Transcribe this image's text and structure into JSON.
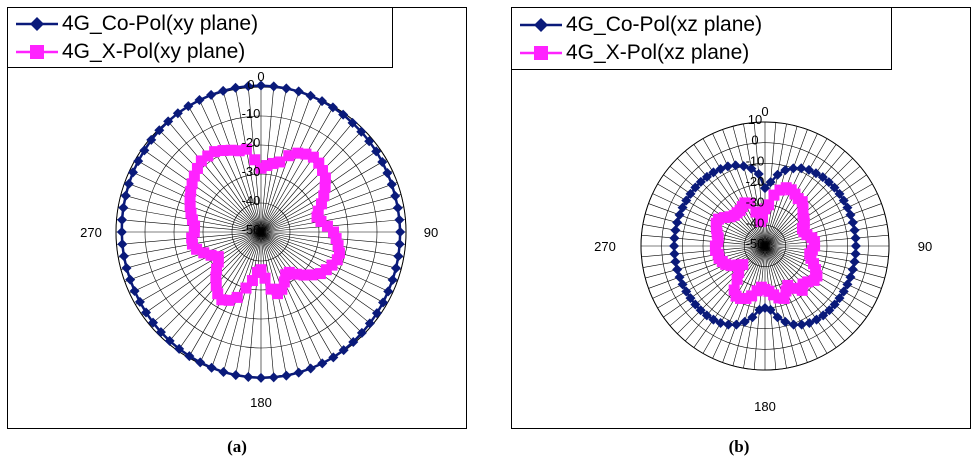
{
  "chart_data": [
    {
      "type": "polar-line",
      "panel_label": "(a)",
      "theta_tick_labels": [
        "0",
        "90",
        "180",
        "270"
      ],
      "r_tick_labels": [
        "0",
        "-10",
        "-20",
        "-30",
        "-40",
        "-50"
      ],
      "r_range": [
        -50,
        0
      ],
      "theta_step_deg": 5,
      "legend_position": "top-left",
      "series": [
        {
          "name": "4G_Co-Pol(xy plane)",
          "color": "#0a1a7a",
          "marker": "diamond",
          "theta_deg": [
            0,
            5,
            10,
            15,
            20,
            25,
            30,
            35,
            40,
            45,
            50,
            55,
            60,
            65,
            70,
            75,
            80,
            85,
            90,
            95,
            100,
            105,
            110,
            115,
            120,
            125,
            130,
            135,
            140,
            145,
            150,
            155,
            160,
            165,
            170,
            175,
            180,
            185,
            190,
            195,
            200,
            205,
            210,
            215,
            220,
            225,
            230,
            235,
            240,
            245,
            250,
            255,
            260,
            265,
            270,
            275,
            280,
            285,
            290,
            295,
            300,
            305,
            310,
            315,
            320,
            325,
            330,
            335,
            340,
            345,
            350,
            355
          ],
          "values": [
            0.5,
            0.4,
            0.3,
            0.2,
            0,
            -0.2,
            -0.4,
            -0.6,
            -0.9,
            -1.1,
            -1.3,
            -1.5,
            -1.7,
            -1.9,
            -2,
            -2.1,
            -2.1,
            -2.1,
            -2,
            -2,
            -1.9,
            -1.8,
            -1.7,
            -1.6,
            -1.4,
            -1.2,
            -1,
            -0.8,
            -0.5,
            -0.3,
            -0.1,
            0,
            0.1,
            0.2,
            0.3,
            0.3,
            0.3,
            0.2,
            0.1,
            0,
            -0.2,
            -0.4,
            -0.6,
            -0.8,
            -1,
            -1.2,
            -1.4,
            -1.6,
            -1.8,
            -1.9,
            -2,
            -2,
            -2,
            -2,
            -2,
            -1.9,
            -1.8,
            -1.7,
            -1.5,
            -1.3,
            -1.1,
            -0.9,
            -0.6,
            -0.4,
            -0.2,
            0,
            0.1,
            0.2,
            0.3,
            0.4,
            0.5,
            0.5
          ]
        },
        {
          "name": "4G_X-Pol(xy plane)",
          "color": "#ff22ff",
          "marker": "square",
          "theta_deg": [
            0,
            5,
            10,
            15,
            20,
            25,
            30,
            35,
            40,
            45,
            50,
            55,
            60,
            65,
            70,
            75,
            80,
            85,
            90,
            95,
            100,
            105,
            110,
            115,
            120,
            125,
            130,
            135,
            140,
            145,
            150,
            155,
            160,
            165,
            170,
            175,
            180,
            185,
            190,
            195,
            200,
            205,
            210,
            215,
            220,
            225,
            230,
            235,
            240,
            245,
            250,
            255,
            260,
            265,
            270,
            275,
            280,
            285,
            290,
            295,
            300,
            305,
            310,
            315,
            320,
            325,
            330,
            335,
            340,
            345,
            350,
            355
          ],
          "values": [
            -28,
            -27,
            -26,
            -25,
            -22,
            -20,
            -19,
            -18.5,
            -19,
            -20,
            -21,
            -23,
            -25,
            -27,
            -29,
            -30,
            -29,
            -27,
            -25,
            -24,
            -23,
            -22,
            -22,
            -23,
            -24,
            -25,
            -27,
            -29,
            -31,
            -33,
            -33,
            -31,
            -29,
            -28,
            -30,
            -34,
            -37,
            -36,
            -33,
            -30,
            -26,
            -24,
            -23,
            -24,
            -26,
            -28,
            -30,
            -32,
            -33,
            -31,
            -29,
            -27,
            -26,
            -26,
            -27,
            -27,
            -26,
            -25,
            -24,
            -23,
            -22,
            -21,
            -20,
            -19,
            -18,
            -18,
            -18,
            -19,
            -20,
            -21,
            -21,
            -25
          ]
        }
      ]
    },
    {
      "type": "polar-line",
      "panel_label": "(b)",
      "theta_tick_labels": [
        "0",
        "90",
        "180",
        "270"
      ],
      "r_tick_labels": [
        "10",
        "0",
        "-10",
        "-20",
        "-30",
        "-40",
        "-50"
      ],
      "r_range": [
        -50,
        10
      ],
      "theta_step_deg": 5,
      "legend_position": "top-left",
      "series": [
        {
          "name": "4G_Co-Pol(xz plane)",
          "color": "#0a1a7a",
          "marker": "diamond",
          "theta_deg": [
            0,
            5,
            10,
            15,
            20,
            25,
            30,
            35,
            40,
            45,
            50,
            55,
            60,
            65,
            70,
            75,
            80,
            85,
            90,
            95,
            100,
            105,
            110,
            115,
            120,
            125,
            130,
            135,
            140,
            145,
            150,
            155,
            160,
            165,
            170,
            175,
            180,
            185,
            190,
            195,
            200,
            205,
            210,
            215,
            220,
            225,
            230,
            235,
            240,
            245,
            250,
            255,
            260,
            265,
            270,
            275,
            280,
            285,
            290,
            295,
            300,
            305,
            310,
            315,
            320,
            325,
            330,
            335,
            340,
            345,
            350,
            355
          ],
          "values": [
            -22,
            -19,
            -15,
            -12,
            -10,
            -8.5,
            -7.5,
            -7,
            -6.5,
            -6.3,
            -6.1,
            -6,
            -6,
            -6,
            -6,
            -6,
            -6,
            -6,
            -6,
            -6,
            -6,
            -6,
            -6,
            -6,
            -6,
            -6,
            -6,
            -6,
            -6.2,
            -6.5,
            -7,
            -8,
            -9.5,
            -12,
            -15,
            -19,
            -20,
            -19,
            -15,
            -12,
            -9.5,
            -8,
            -7,
            -6.5,
            -6.2,
            -6,
            -6,
            -6,
            -6,
            -6,
            -6,
            -6,
            -6,
            -6,
            -6,
            -6,
            -6,
            -6,
            -6,
            -6,
            -6,
            -6,
            -6,
            -6.1,
            -6.3,
            -6.5,
            -7,
            -7.5,
            -8.5,
            -10,
            -12,
            -15
          ]
        },
        {
          "name": "4G_X-Pol(xz plane)",
          "color": "#ff22ff",
          "marker": "square",
          "theta_deg": [
            0,
            5,
            10,
            15,
            20,
            25,
            30,
            35,
            40,
            45,
            50,
            55,
            60,
            65,
            70,
            75,
            80,
            85,
            90,
            95,
            100,
            105,
            110,
            115,
            120,
            125,
            130,
            135,
            140,
            145,
            150,
            155,
            160,
            165,
            170,
            175,
            180,
            185,
            190,
            195,
            200,
            205,
            210,
            215,
            220,
            225,
            230,
            235,
            240,
            245,
            250,
            255,
            260,
            265,
            270,
            275,
            280,
            285,
            290,
            295,
            300,
            305,
            310,
            315,
            320,
            325,
            330,
            335,
            340,
            345,
            350,
            355
          ],
          "values": [
            -32,
            -30,
            -25,
            -22,
            -20,
            -20,
            -21,
            -22,
            -22,
            -24,
            -26,
            -27,
            -28,
            -30,
            -30,
            -29,
            -27,
            -26,
            -26,
            -27,
            -28,
            -27,
            -25,
            -23,
            -21,
            -21,
            -23,
            -24,
            -22,
            -25,
            -28,
            -26,
            -23,
            -24,
            -26,
            -28,
            -29,
            -30,
            -28,
            -25,
            -23,
            -22,
            -22,
            -24,
            -29,
            -32,
            -36,
            -34,
            -31,
            -29,
            -28,
            -27,
            -27,
            -26,
            -26,
            -27,
            -27,
            -26,
            -25,
            -24,
            -24,
            -26,
            -28,
            -29,
            -29,
            -29,
            -28,
            -27,
            -28,
            -33,
            -38,
            -36
          ]
        }
      ]
    }
  ]
}
